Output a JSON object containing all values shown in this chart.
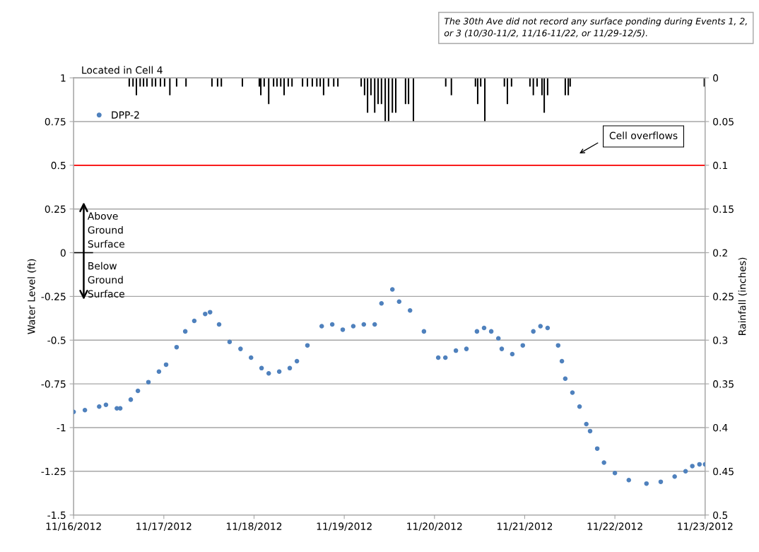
{
  "chart_data": {
    "type": "scatter",
    "xlim": [
      "2012-11-16",
      "2012-11-23"
    ],
    "xticks": [
      {
        "value": "2012-11-16",
        "label": "11/16/2012"
      },
      {
        "value": "2012-11-17",
        "label": "11/17/2012"
      },
      {
        "value": "2012-11-18",
        "label": "11/18/2012"
      },
      {
        "value": "2012-11-19",
        "label": "11/19/2012"
      },
      {
        "value": "2012-11-20",
        "label": "11/20/2012"
      },
      {
        "value": "2012-11-21",
        "label": "11/21/2012"
      },
      {
        "value": "2012-11-22",
        "label": "11/22/2012"
      },
      {
        "value": "2012-11-23",
        "label": "11/23/2012"
      }
    ],
    "ylabel": "Water Level (ft)",
    "y2label": "Rainfall (inches)",
    "ylim": [
      -1.5,
      1
    ],
    "yticks": [
      -1.5,
      -1.25,
      -1,
      -0.75,
      -0.5,
      -0.25,
      0,
      0.25,
      0.5,
      0.75,
      1
    ],
    "y2lim": [
      0.5,
      0
    ],
    "y2ticks": [
      0,
      0.05,
      0.1,
      0.15,
      0.2,
      0.25,
      0.3,
      0.35,
      0.4,
      0.45,
      0.5
    ],
    "grid": "y",
    "legend": "top left",
    "marker": "circle",
    "series": [
      {
        "name": "DPP-2",
        "color": "#4f81bd",
        "x": [
          "2012-11-16T00:00",
          "2012-11-16T03:00",
          "2012-11-16T06:48",
          "2012-11-16T08:36",
          "2012-11-16T11:30",
          "2012-11-16T12:24",
          "2012-11-16T15:12",
          "2012-11-16T17:06",
          "2012-11-16T19:54",
          "2012-11-16T22:42",
          "2012-11-17T00:36",
          "2012-11-17T03:24",
          "2012-11-17T05:42",
          "2012-11-17T08:06",
          "2012-11-17T11:00",
          "2012-11-17T12:18",
          "2012-11-17T14:42",
          "2012-11-17T17:30",
          "2012-11-17T20:24",
          "2012-11-17T23:12",
          "2012-11-18T02:00",
          "2012-11-18T03:54",
          "2012-11-18T06:42",
          "2012-11-18T09:30",
          "2012-11-18T11:24",
          "2012-11-18T14:12",
          "2012-11-18T18:00",
          "2012-11-18T20:48",
          "2012-11-18T23:36",
          "2012-11-19T02:24",
          "2012-11-19T05:12",
          "2012-11-19T08:06",
          "2012-11-19T09:54",
          "2012-11-19T12:48",
          "2012-11-19T14:36",
          "2012-11-19T17:30",
          "2012-11-19T21:12",
          "2012-11-20T01:00",
          "2012-11-20T02:54",
          "2012-11-20T05:42",
          "2012-11-20T08:30",
          "2012-11-20T11:18",
          "2012-11-20T13:12",
          "2012-11-20T15:06",
          "2012-11-20T17:00",
          "2012-11-20T17:54",
          "2012-11-20T20:42",
          "2012-11-20T23:30",
          "2012-11-21T02:18",
          "2012-11-21T04:12",
          "2012-11-21T06:06",
          "2012-11-21T08:54",
          "2012-11-21T09:54",
          "2012-11-21T10:48",
          "2012-11-21T12:42",
          "2012-11-21T14:36",
          "2012-11-21T16:24",
          "2012-11-21T17:24",
          "2012-11-21T19:18",
          "2012-11-21T21:06",
          "2012-11-22T00:00",
          "2012-11-22T03:42",
          "2012-11-22T08:24",
          "2012-11-22T12:12",
          "2012-11-22T15:54",
          "2012-11-22T18:48",
          "2012-11-22T20:36",
          "2012-11-22T22:30",
          "2012-11-23T00:00"
        ],
        "values": [
          -0.91,
          -0.9,
          -0.88,
          -0.87,
          -0.89,
          -0.89,
          -0.84,
          -0.79,
          -0.74,
          -0.68,
          -0.64,
          -0.54,
          -0.45,
          -0.39,
          -0.35,
          -0.34,
          -0.41,
          -0.51,
          -0.55,
          -0.6,
          -0.66,
          -0.69,
          -0.68,
          -0.66,
          -0.62,
          -0.53,
          -0.42,
          -0.41,
          -0.44,
          -0.42,
          -0.41,
          -0.41,
          -0.29,
          -0.21,
          -0.28,
          -0.33,
          -0.45,
          -0.6,
          -0.6,
          -0.56,
          -0.55,
          -0.45,
          -0.43,
          -0.45,
          -0.49,
          -0.55,
          -0.58,
          -0.53,
          -0.45,
          -0.42,
          -0.43,
          -0.53,
          -0.62,
          -0.72,
          -0.8,
          -0.88,
          -0.98,
          -1.02,
          -1.12,
          -1.2,
          -1.26,
          -1.3,
          -1.32,
          -1.31,
          -1.28,
          -1.25,
          -1.22,
          -1.21,
          -1.21
        ]
      },
      {
        "type": "bar",
        "axis": "y2",
        "color": "#000000",
        "x": [
          "2012-11-16T14:48",
          "2012-11-16T15:48",
          "2012-11-16T16:42",
          "2012-11-16T17:42",
          "2012-11-16T18:36",
          "2012-11-16T19:30",
          "2012-11-16T20:54",
          "2012-11-16T21:48",
          "2012-11-16T23:06",
          "2012-11-17T00:12",
          "2012-11-17T01:36",
          "2012-11-17T03:24",
          "2012-11-17T05:54",
          "2012-11-17T12:48",
          "2012-11-17T14:18",
          "2012-11-17T15:18",
          "2012-11-17T20:54",
          "2012-11-18T01:24",
          "2012-11-18T01:48",
          "2012-11-18T02:42",
          "2012-11-18T03:54",
          "2012-11-18T05:12",
          "2012-11-18T06:06",
          "2012-11-18T07:06",
          "2012-11-18T08:00",
          "2012-11-18T09:06",
          "2012-11-18T10:06",
          "2012-11-18T12:54",
          "2012-11-18T14:12",
          "2012-11-18T15:30",
          "2012-11-18T16:42",
          "2012-11-18T17:36",
          "2012-11-18T18:30",
          "2012-11-18T19:48",
          "2012-11-18T21:12",
          "2012-11-18T22:18",
          "2012-11-19T04:30",
          "2012-11-19T05:24",
          "2012-11-19T06:12",
          "2012-11-19T07:06",
          "2012-11-19T08:06",
          "2012-11-19T09:00",
          "2012-11-19T09:54",
          "2012-11-19T10:54",
          "2012-11-19T11:48",
          "2012-11-19T12:48",
          "2012-11-19T13:42",
          "2012-11-19T16:18",
          "2012-11-19T17:06",
          "2012-11-19T18:24",
          "2012-11-20T03:00",
          "2012-11-20T04:30",
          "2012-11-20T10:54",
          "2012-11-20T11:30",
          "2012-11-20T12:18",
          "2012-11-20T13:24",
          "2012-11-20T18:36",
          "2012-11-20T19:24",
          "2012-11-20T20:30",
          "2012-11-21T01:24",
          "2012-11-21T02:18",
          "2012-11-21T03:18",
          "2012-11-21T04:36",
          "2012-11-21T05:12",
          "2012-11-21T06:06",
          "2012-11-21T10:48",
          "2012-11-21T11:36",
          "2012-11-21T12:06",
          "2012-11-22T23:48"
        ],
        "values": [
          0.01,
          0.01,
          0.02,
          0.01,
          0.01,
          0.01,
          0.01,
          0.01,
          0.01,
          0.01,
          0.02,
          0.01,
          0.01,
          0.01,
          0.01,
          0.01,
          0.01,
          0.01,
          0.02,
          0.01,
          0.03,
          0.01,
          0.01,
          0.01,
          0.02,
          0.01,
          0.01,
          0.01,
          0.01,
          0.01,
          0.01,
          0.01,
          0.02,
          0.01,
          0.01,
          0.01,
          0.01,
          0.02,
          0.04,
          0.02,
          0.04,
          0.03,
          0.03,
          0.05,
          0.05,
          0.04,
          0.04,
          0.03,
          0.03,
          0.05,
          0.01,
          0.02,
          0.01,
          0.03,
          0.01,
          0.05,
          0.01,
          0.03,
          0.01,
          0.01,
          0.02,
          0.01,
          0.02,
          0.04,
          0.02,
          0.02,
          0.02,
          0.01,
          0.01
        ]
      }
    ],
    "ref_lines": [
      {
        "axis": "y",
        "value": 0.5,
        "label": "Cell overflows",
        "color": "#ff0000"
      }
    ],
    "annotations": [
      "Located in Cell 4",
      "The 30th Ave did not record any surface ponding during Events 1, 2, or 3 (10/30-11/2, 11/16-11/22, or 11/29-12/5).",
      "Above Ground Surface",
      "Below Ground Surface"
    ]
  }
}
